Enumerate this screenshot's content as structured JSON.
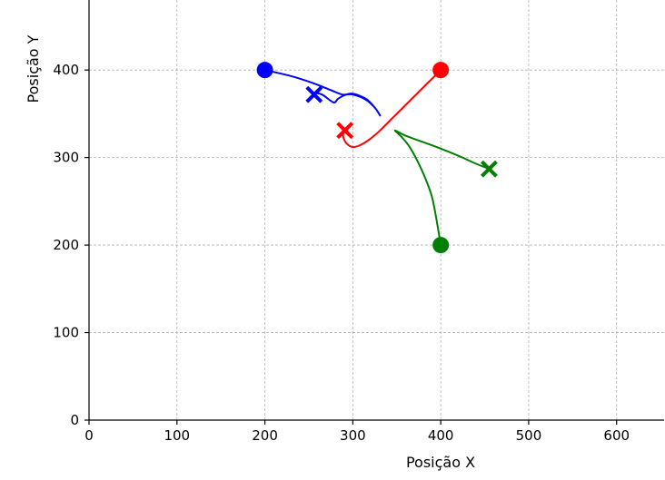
{
  "chart_data": {
    "type": "line",
    "title": "",
    "xlabel": "Posição X",
    "ylabel": "Posição Y",
    "xlim": [
      0,
      654
    ],
    "ylim": [
      0,
      480
    ],
    "xticks": [
      0,
      100,
      200,
      300,
      400,
      500,
      600
    ],
    "yticks": [
      0,
      100,
      200,
      300,
      400
    ],
    "grid": true,
    "series": [
      {
        "color": "#0000ff",
        "path": [
          [
            200,
            400
          ],
          [
            230,
            393
          ],
          [
            255,
            385
          ],
          [
            275,
            377
          ],
          [
            288,
            372
          ],
          [
            300,
            372
          ],
          [
            315,
            366
          ],
          [
            325,
            357
          ],
          [
            331,
            348
          ],
          [
            325,
            357
          ],
          [
            315,
            367
          ],
          [
            300,
            373
          ],
          [
            290,
            371
          ],
          [
            283,
            367
          ],
          [
            278,
            363
          ],
          [
            265,
            372
          ],
          [
            256,
            374
          ]
        ],
        "start": [
          200,
          400
        ],
        "end": [
          256,
          372
        ]
      },
      {
        "color": "#ff0000",
        "path": [
          [
            400,
            400
          ],
          [
            385,
            385
          ],
          [
            365,
            365
          ],
          [
            345,
            345
          ],
          [
            330,
            330
          ],
          [
            318,
            320
          ],
          [
            308,
            314
          ],
          [
            300,
            312
          ],
          [
            293,
            316
          ],
          [
            289,
            324
          ],
          [
            290,
            331
          ]
        ],
        "start": [
          400,
          400
        ],
        "end": [
          291,
          331
        ]
      },
      {
        "color": "#008000",
        "path": [
          [
            400,
            200
          ],
          [
            395,
            230
          ],
          [
            390,
            255
          ],
          [
            383,
            275
          ],
          [
            374,
            295
          ],
          [
            364,
            313
          ],
          [
            355,
            324
          ],
          [
            348,
            331
          ],
          [
            360,
            325
          ],
          [
            390,
            314
          ],
          [
            420,
            302
          ],
          [
            440,
            293
          ],
          [
            455,
            287
          ]
        ],
        "start": [
          400,
          200
        ],
        "end": [
          455,
          287
        ]
      }
    ]
  }
}
